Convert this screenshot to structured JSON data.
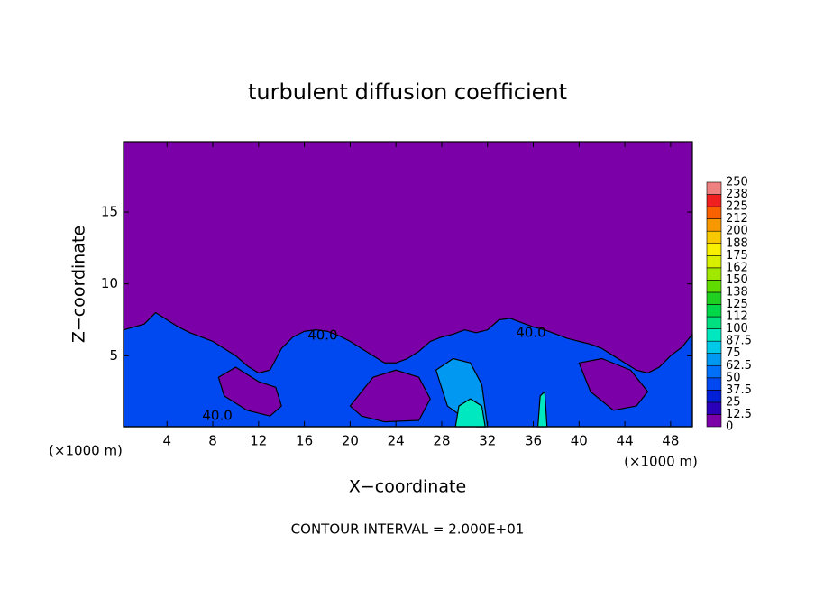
{
  "chart_data": {
    "type": "contour",
    "title": "turbulent diffusion coefficient",
    "x_label": "X−coordinate",
    "y_label": "Z−coordinate",
    "x_unit": "(×1000 m)",
    "note": "CONTOUR INTERVAL = 2.000E+01",
    "xlim": [
      0.2,
      49.9
    ],
    "ylim": [
      0.06,
      19.9
    ],
    "xticks": [
      4,
      8,
      12,
      16,
      20,
      24,
      28,
      32,
      36,
      40,
      44,
      48
    ],
    "yticks": [
      5,
      10,
      15
    ],
    "background_value": 0,
    "colorbar": {
      "levels": [
        0,
        12.5,
        25,
        37.5,
        50,
        62.5,
        75,
        87.5,
        100,
        112,
        125,
        138,
        150,
        162,
        175,
        188,
        200,
        212,
        225,
        238,
        250
      ],
      "colors": [
        "#7c00a8",
        "#2a00b8",
        "#0020d8",
        "#0048f0",
        "#0070f8",
        "#0098f0",
        "#00c8e8",
        "#00e8c0",
        "#00e080",
        "#00d848",
        "#20d020",
        "#60dc00",
        "#a0e800",
        "#d8f000",
        "#f8f000",
        "#f8c800",
        "#f89800",
        "#f86000",
        "#f02020",
        "#f08080"
      ]
    },
    "regions": [
      {
        "value": 40,
        "x": [
          0.2,
          2,
          3,
          4,
          5,
          6,
          7,
          8,
          9,
          10,
          11,
          12,
          13,
          14,
          15,
          16,
          17,
          18,
          19,
          20,
          21,
          22,
          23,
          24,
          25,
          26,
          27,
          28,
          29,
          30,
          31,
          32,
          33,
          34,
          35,
          36,
          37,
          38,
          39,
          40,
          41,
          42,
          43,
          44,
          45,
          46,
          47,
          48,
          49,
          49.9,
          49.9,
          0.2
        ],
        "z": [
          6.8,
          7.2,
          8,
          7.5,
          7,
          6.6,
          6.3,
          6,
          5.5,
          5,
          4.3,
          3.8,
          4,
          5.5,
          6.3,
          6.7,
          6.8,
          6.7,
          6.4,
          6,
          5.5,
          5,
          4.5,
          4.5,
          4.8,
          5.3,
          6,
          6.3,
          6.5,
          6.8,
          6.6,
          6.8,
          7.5,
          7.6,
          7.3,
          7,
          6.8,
          6.5,
          6.2,
          6,
          5.8,
          5.5,
          5,
          4.5,
          4,
          3.8,
          4.2,
          5,
          5.6,
          6.5,
          0.06,
          0.06
        ]
      },
      {
        "value": 0,
        "x": [
          8.5,
          10,
          12,
          13.5,
          14,
          13,
          11,
          9
        ],
        "z": [
          3.5,
          4.2,
          3.2,
          2.8,
          1.5,
          0.8,
          1.2,
          2.2
        ]
      },
      {
        "value": 0,
        "x": [
          20,
          22,
          24,
          26,
          27,
          26,
          23,
          21
        ],
        "z": [
          1.5,
          3.5,
          4,
          3.5,
          2,
          0.5,
          0.4,
          0.8
        ]
      },
      {
        "value": 0,
        "x": [
          40,
          42,
          44.5,
          46,
          45,
          43,
          41
        ],
        "z": [
          4.5,
          4.8,
          4,
          2.5,
          1.5,
          1.2,
          2.5
        ]
      },
      {
        "value": 62.5,
        "x": [
          27.5,
          29,
          30.5,
          31.5,
          32,
          31,
          28.5
        ],
        "z": [
          4,
          4.8,
          4.5,
          3,
          0.06,
          0.06,
          1.5
        ]
      },
      {
        "value": 90,
        "x": [
          29.5,
          30.5,
          31.5,
          31.8,
          29.2
        ],
        "z": [
          1.5,
          2,
          1.5,
          0.06,
          0.06
        ]
      },
      {
        "value": 90,
        "x": [
          36.6,
          37,
          37.2,
          36.4
        ],
        "z": [
          2.2,
          2.5,
          0.06,
          0.06
        ]
      }
    ],
    "contour_labels": [
      {
        "text": "40.0",
        "x": 17.6,
        "y": 6.4
      },
      {
        "text": "40.0",
        "x": 35.8,
        "y": 6.6
      },
      {
        "text": "40.0",
        "x": 8.4,
        "y": 0.8
      }
    ]
  }
}
